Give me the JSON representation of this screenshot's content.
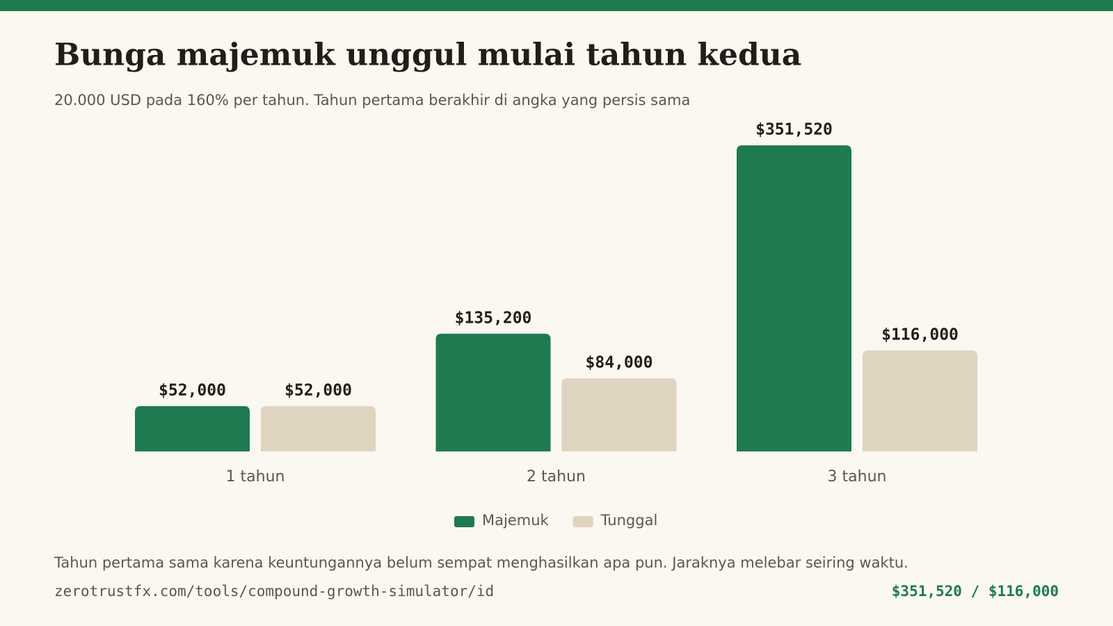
{
  "chart_data": {
    "type": "bar",
    "title": "Bunga majemuk unggul mulai tahun kedua",
    "subtitle": "20.000 USD pada 160% per tahun. Tahun pertama berakhir di angka yang persis sama",
    "categories": [
      "1 tahun",
      "2 tahun",
      "3 tahun"
    ],
    "series": [
      {
        "name": "Majemuk",
        "color": "#1f7a50",
        "values": [
          52000,
          135200,
          351520
        ],
        "value_labels": [
          "$52,000",
          "$135,200",
          "$351,520"
        ]
      },
      {
        "name": "Tunggal",
        "color": "#ded4c0",
        "values": [
          52000,
          84000,
          116000
        ],
        "value_labels": [
          "$52,000",
          "$84,000",
          "$116,000"
        ]
      }
    ]
  },
  "footer": {
    "note": "Tahun pertama sama karena keuntungannya belum sempat menghasilkan apa pun. Jaraknya melebar seiring waktu.",
    "source": "zerotrustfx.com/tools/compound-growth-simulator/id",
    "summary": "$351,520 / $116,000"
  }
}
